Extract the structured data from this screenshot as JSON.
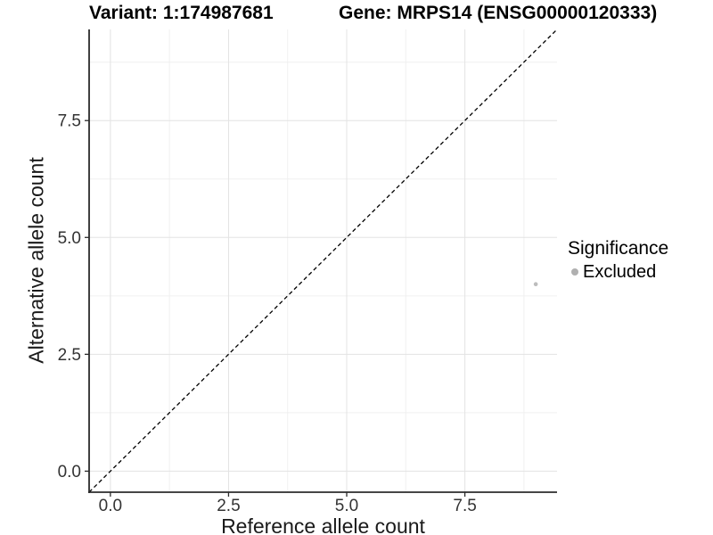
{
  "titles": {
    "variant": "Variant: 1:174987681",
    "gene": "Gene: MRPS14 (ENSG00000120333)"
  },
  "chart_data": {
    "type": "scatter",
    "title": "Variant: 1:174987681  /  Gene: MRPS14 (ENSG00000120333)",
    "xlabel": "Reference allele count",
    "ylabel": "Alternative allele count",
    "xlim": [
      -0.45,
      9.45
    ],
    "ylim": [
      -0.45,
      9.45
    ],
    "x_ticks": {
      "values": [
        0,
        2.5,
        5,
        7.5
      ],
      "labels": [
        "0.0",
        "2.5",
        "5.0",
        "7.5"
      ]
    },
    "y_ticks": {
      "values": [
        0,
        2.5,
        5,
        7.5
      ],
      "labels": [
        "0.0",
        "2.5",
        "5.0",
        "7.5"
      ]
    },
    "minor_ticks": [
      1.25,
      3.75,
      6.25,
      8.75
    ],
    "grid": "major and minor, light gray on white",
    "reference_line": {
      "type": "identity y=x",
      "style": "dashed",
      "color": "#000000"
    },
    "series": [
      {
        "name": "Excluded",
        "color": "#b0b0b0",
        "points": [
          {
            "x": 9,
            "y": 4
          }
        ]
      }
    ],
    "legend": {
      "title": "Significance",
      "position": "right",
      "items": [
        {
          "label": "Excluded",
          "color": "#b0b0b0"
        }
      ]
    }
  },
  "style": {
    "grid_major_color": "#e3e3e3",
    "grid_minor_color": "#f0f0f0",
    "axis_line_color": "#2b2b2b",
    "tick_label_color": "#333333",
    "point_color": "#bdbdbd"
  }
}
